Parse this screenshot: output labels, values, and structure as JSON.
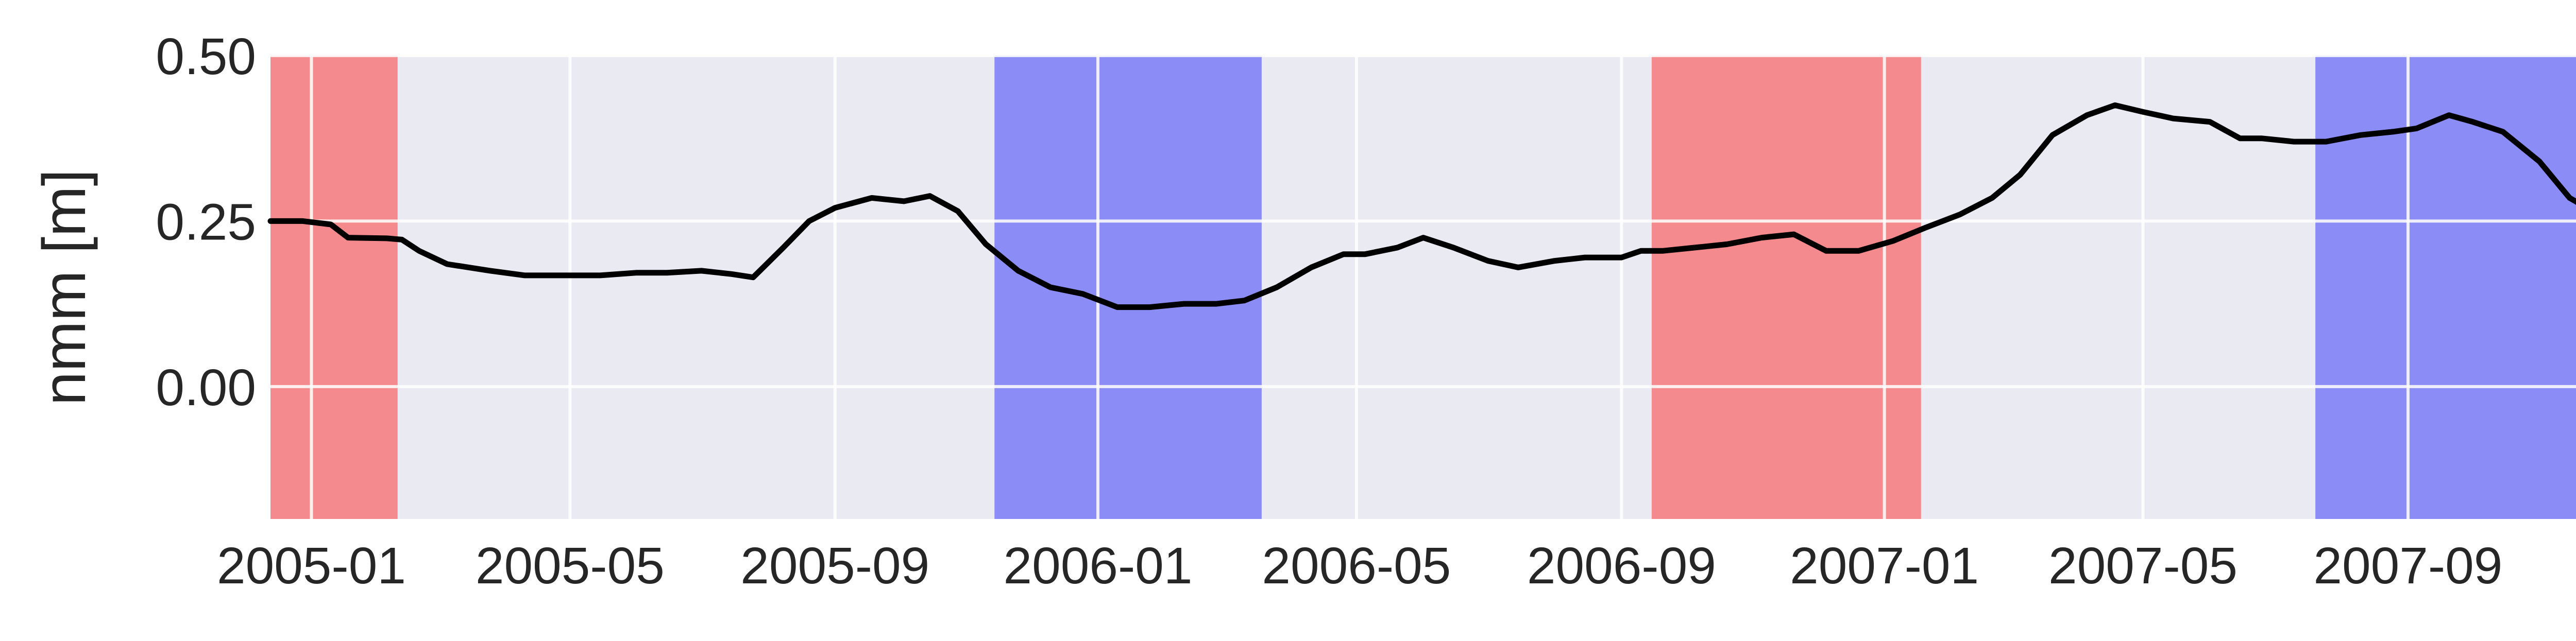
{
  "chart_data": {
    "type": "line",
    "title": "",
    "xlabel": "",
    "ylabel": "nmm [m]",
    "xlim": [
      "2004-12-13",
      "2007-12-31"
    ],
    "ylim": [
      -0.2,
      0.5
    ],
    "grid": true,
    "legend": "none",
    "x_ticks": [
      "2005-01",
      "2005-05",
      "2005-09",
      "2006-01",
      "2006-05",
      "2006-09",
      "2007-01",
      "2007-05",
      "2007-09"
    ],
    "y_ticks": [
      "0.50",
      "0.25",
      "0.00"
    ],
    "colors": {
      "background": "#eaeaf2",
      "grid": "#ffffff",
      "line": "#000000",
      "red_span": "#f58a8e",
      "blue_span": "#8c8cf6",
      "tick_text": "#262626"
    },
    "shaded_regions": [
      {
        "start": "2004-12-13",
        "end": "2005-02-10",
        "color": "red"
      },
      {
        "start": "2005-11-14",
        "end": "2006-03-18",
        "color": "blue"
      },
      {
        "start": "2006-09-15",
        "end": "2007-01-18",
        "color": "red"
      },
      {
        "start": "2007-07-20",
        "end": "2007-12-31",
        "color": "blue"
      }
    ],
    "series": [
      {
        "x": [
          "2004-12-13",
          "2004-12-28",
          "2005-01-10",
          "2005-01-18",
          "2005-02-05",
          "2005-02-12",
          "2005-02-20",
          "2005-03-05",
          "2005-03-25",
          "2005-04-10",
          "2005-04-28",
          "2005-05-15",
          "2005-06-01",
          "2005-06-15",
          "2005-07-01",
          "2005-07-15",
          "2005-07-25",
          "2005-08-08",
          "2005-08-20",
          "2005-09-01",
          "2005-09-18",
          "2005-10-03",
          "2005-10-15",
          "2005-10-28",
          "2005-11-10",
          "2005-11-25",
          "2005-12-10",
          "2005-12-25",
          "2006-01-10",
          "2006-01-25",
          "2006-02-10",
          "2006-02-25",
          "2006-03-10",
          "2006-03-25",
          "2006-04-10",
          "2006-04-25",
          "2006-05-05",
          "2006-05-20",
          "2006-06-01",
          "2006-06-15",
          "2006-07-01",
          "2006-07-15",
          "2006-08-01",
          "2006-08-15",
          "2006-09-01",
          "2006-09-10",
          "2006-09-20",
          "2006-10-05",
          "2006-10-20",
          "2006-11-05",
          "2006-11-20",
          "2006-12-05",
          "2006-12-20",
          "2007-01-05",
          "2007-01-20",
          "2007-02-05",
          "2007-02-20",
          "2007-03-05",
          "2007-03-20",
          "2007-04-05",
          "2007-04-18",
          "2007-05-01",
          "2007-05-15",
          "2007-06-01",
          "2007-06-15",
          "2007-06-25",
          "2007-07-10",
          "2007-07-25",
          "2007-08-10",
          "2007-08-25",
          "2007-09-05",
          "2007-09-20",
          "2007-10-01",
          "2007-10-15",
          "2007-11-01",
          "2007-11-15",
          "2007-12-01",
          "2007-12-15",
          "2007-12-31"
        ],
        "values": [
          0.25,
          0.25,
          0.245,
          0.225,
          0.224,
          0.222,
          0.205,
          0.185,
          0.175,
          0.168,
          0.168,
          0.168,
          0.172,
          0.172,
          0.175,
          0.17,
          0.165,
          0.21,
          0.25,
          0.27,
          0.285,
          0.28,
          0.288,
          0.265,
          0.215,
          0.175,
          0.15,
          0.14,
          0.12,
          0.12,
          0.125,
          0.125,
          0.13,
          0.15,
          0.18,
          0.2,
          0.2,
          0.21,
          0.225,
          0.21,
          0.19,
          0.18,
          0.19,
          0.195,
          0.195,
          0.205,
          0.205,
          0.21,
          0.215,
          0.225,
          0.23,
          0.205,
          0.205,
          0.22,
          0.24,
          0.26,
          0.285,
          0.32,
          0.38,
          0.41,
          0.425,
          0.415,
          0.405,
          0.4,
          0.375,
          0.375,
          0.37,
          0.37,
          0.38,
          0.385,
          0.39,
          0.41,
          0.4,
          0.385,
          0.34,
          0.285,
          0.255,
          0.235,
          0.225
        ]
      }
    ]
  }
}
